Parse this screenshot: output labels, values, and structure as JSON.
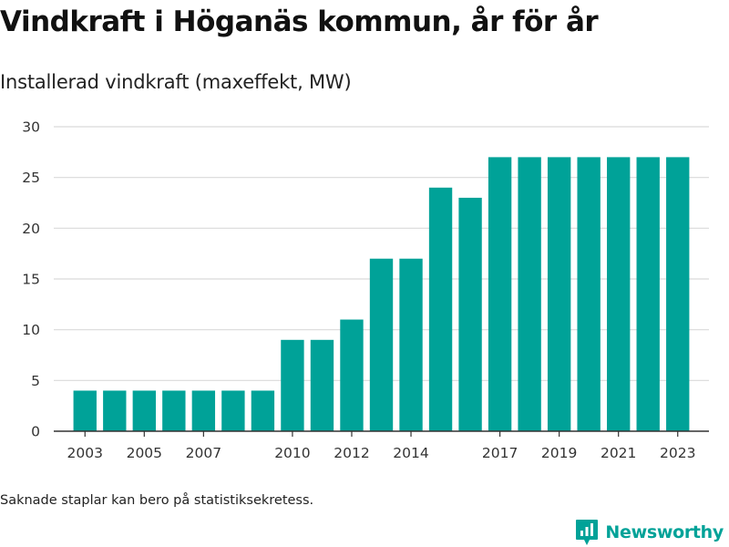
{
  "header": {
    "title": "Vindkraft i Höganäs kommun, år för år",
    "subtitle": "Installerad vindkraft (maxeffekt, MW)"
  },
  "footer": {
    "note": "Saknade staplar kan bero på statistiksekretess.",
    "brand": "Newsworthy",
    "brand_icon": "newsworthy-logo-icon"
  },
  "colors": {
    "bar": "#00a298",
    "brand": "#00a298",
    "grid": "#d9d9d9",
    "axis": "#333333"
  },
  "chart_data": {
    "type": "bar",
    "title": "Vindkraft i Höganäs kommun, år för år",
    "subtitle": "Installerad vindkraft (maxeffekt, MW)",
    "xlabel": "",
    "ylabel": "",
    "categories": [
      "2003",
      "2004",
      "2005",
      "2006",
      "2007",
      "2008",
      "2009",
      "2010",
      "2011",
      "2012",
      "2013",
      "2014",
      "2015",
      "2016",
      "2017",
      "2018",
      "2019",
      "2020",
      "2021",
      "2022",
      "2023"
    ],
    "values": [
      4,
      4,
      4,
      4,
      4,
      4,
      4,
      9,
      9,
      11,
      17,
      17,
      24,
      23,
      27,
      27,
      27,
      27,
      27,
      27,
      27
    ],
    "x_tick_labels": [
      "2003",
      "2005",
      "2007",
      "2010",
      "2012",
      "2014",
      "2017",
      "2019",
      "2021",
      "2023"
    ],
    "y_ticks": [
      0,
      5,
      10,
      15,
      20,
      25,
      30
    ],
    "ylim": [
      0,
      30
    ],
    "grid": true,
    "legend": "none"
  }
}
